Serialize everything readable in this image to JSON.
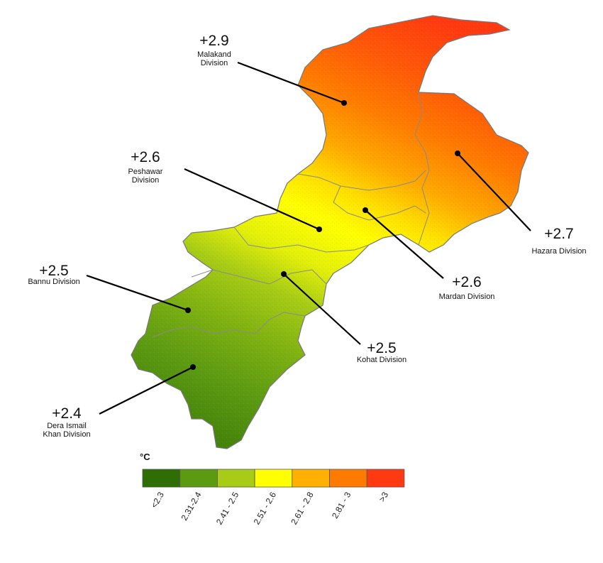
{
  "legend": {
    "unit": "°C",
    "classes": [
      {
        "label": "<2.3",
        "color": "#2f6e04"
      },
      {
        "label": "2.31-2.4",
        "color": "#5c9a12"
      },
      {
        "label": "2.41 - 2.5",
        "color": "#a8cc16"
      },
      {
        "label": "2.51 - 2.6",
        "color": "#ffff00"
      },
      {
        "label": "2.61 - 2.8",
        "color": "#ffb000"
      },
      {
        "label": "2.81 - 3",
        "color": "#ff7b00"
      },
      {
        "label": ">3",
        "color": "#ff3a10"
      }
    ]
  },
  "divisions": [
    {
      "id": "malakand",
      "value": "+2.9",
      "name_lines": [
        "Malakand",
        "Division"
      ]
    },
    {
      "id": "hazara",
      "value": "+2.7",
      "name_lines": [
        "Hazara Division"
      ]
    },
    {
      "id": "peshawar",
      "value": "+2.6",
      "name_lines": [
        "Peshawar",
        "Division"
      ]
    },
    {
      "id": "mardan",
      "value": "+2.6",
      "name_lines": [
        "Mardan Division"
      ]
    },
    {
      "id": "bannu",
      "value": "+2.5",
      "name_lines": [
        "Bannu Division"
      ]
    },
    {
      "id": "kohat",
      "value": "+2.5",
      "name_lines": [
        "Kohat Division"
      ]
    },
    {
      "id": "dikhan",
      "value": "+2.4",
      "name_lines": [
        "Dera Ismail",
        "Khan Division"
      ]
    }
  ]
}
